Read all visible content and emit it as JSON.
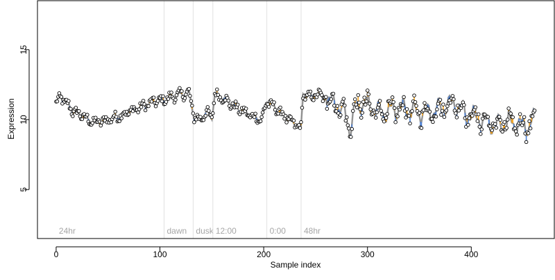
{
  "chart_data": {
    "type": "line",
    "title": "",
    "xlabel": "Sample index",
    "ylabel": "Expression",
    "xlim": [
      -18,
      480
    ],
    "ylim": [
      1.5,
      18.5
    ],
    "x_ticks": [
      0,
      100,
      200,
      300,
      400
    ],
    "y_ticks": [
      5,
      10,
      15
    ],
    "grid": false,
    "legend": "none",
    "vertical_markers": [
      {
        "x": 0,
        "label": "24hr"
      },
      {
        "x": 104,
        "label": "dawn"
      },
      {
        "x": 132,
        "label": "dusk"
      },
      {
        "x": 151,
        "label": "12:00"
      },
      {
        "x": 203,
        "label": "0:00"
      },
      {
        "x": 236,
        "label": "48hr"
      }
    ],
    "observed_range": [
      8.3,
      12.4
    ],
    "series": [
      {
        "name": "",
        "color": "#808080",
        "role": "fitted-line"
      },
      {
        "name": "",
        "color": "#f5a623",
        "role": "positive-residual"
      },
      {
        "name": "",
        "color": "#4a7fd4",
        "role": "negative-residual"
      }
    ],
    "point_style": {
      "fill": "#ffffff",
      "stroke": "#000000"
    },
    "colors": {
      "axis": "#000000",
      "marker_line": "#e0e0e0",
      "marker_text": "#a6a6a6"
    }
  }
}
